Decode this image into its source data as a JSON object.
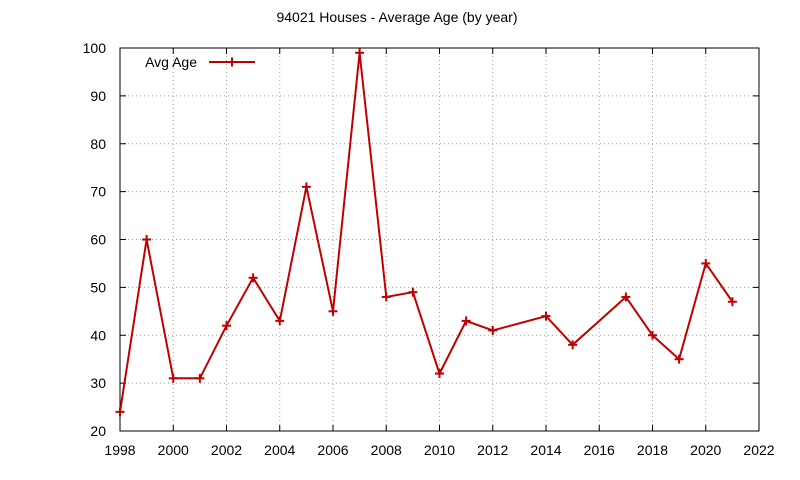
{
  "chart_data": {
    "type": "line",
    "title": "94021 Houses - Average Age (by year)",
    "xlabel": "",
    "ylabel": "",
    "xlim": [
      1998,
      2022
    ],
    "ylim": [
      20,
      100
    ],
    "x_ticks": [
      "1998",
      "2000",
      "2002",
      "2004",
      "2006",
      "2008",
      "2010",
      "2012",
      "2014",
      "2016",
      "2018",
      "2020",
      "2022"
    ],
    "y_ticks": [
      "20",
      "30",
      "40",
      "50",
      "60",
      "70",
      "80",
      "90",
      "100"
    ],
    "grid": true,
    "legend_position": "top-left",
    "series": [
      {
        "name": "Avg Age",
        "color": "#c00000",
        "marker": "plus",
        "x": [
          1998,
          1999,
          2000,
          2001,
          2002,
          2003,
          2004,
          2005,
          2006,
          2007,
          2008,
          2009,
          2010,
          2011,
          2012,
          2014,
          2015,
          2017,
          2018,
          2019,
          2020,
          2021
        ],
        "y": [
          24,
          60,
          31,
          31,
          42,
          52,
          43,
          71,
          45,
          99,
          48,
          49,
          32,
          43,
          41,
          44,
          38,
          48,
          40,
          35,
          55,
          47
        ]
      }
    ]
  }
}
